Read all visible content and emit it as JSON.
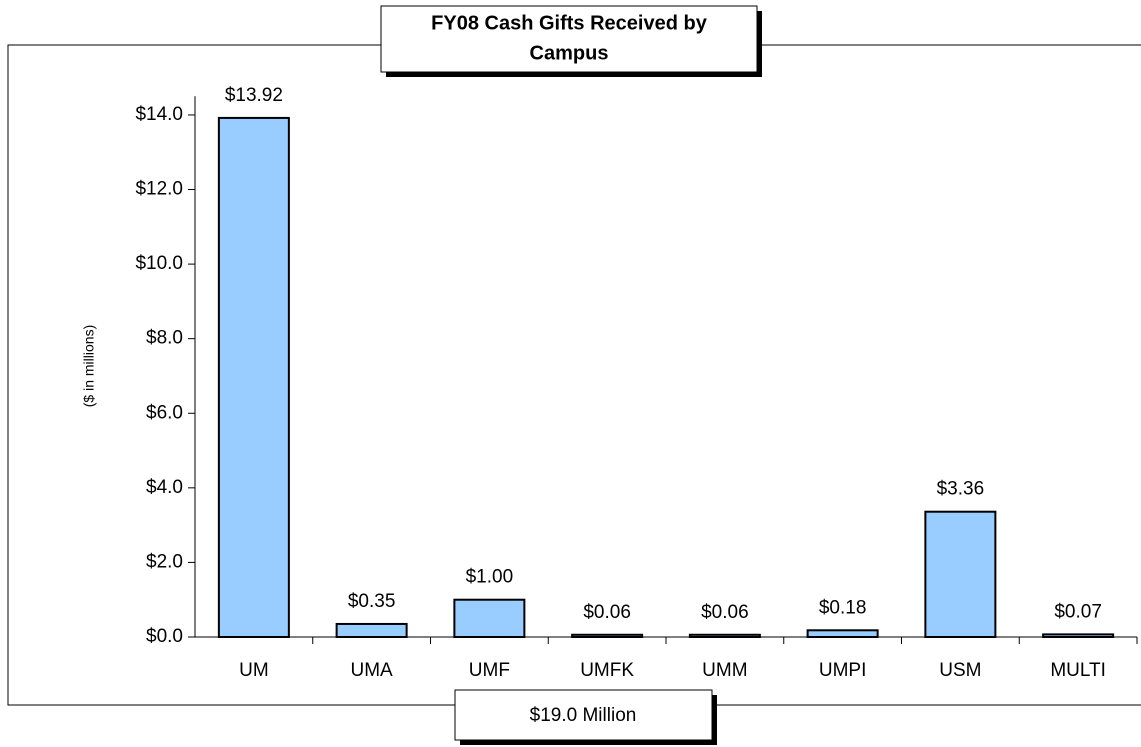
{
  "chart_data": {
    "type": "bar",
    "title": [
      "FY08 Cash Gifts Received by",
      "Campus"
    ],
    "y_label": "($ in millions)",
    "footer": "$19.0 Million",
    "categories": [
      "UM",
      "UMA",
      "UMF",
      "UMFK",
      "UMM",
      "UMPI",
      "USM",
      "MULTI"
    ],
    "values": [
      13.92,
      0.35,
      1.0,
      0.06,
      0.06,
      0.18,
      3.36,
      0.07
    ],
    "value_labels": [
      "$13.92",
      "$0.35",
      "$1.00",
      "$0.06",
      "$0.06",
      "$0.18",
      "$3.36",
      "$0.07"
    ],
    "color": "#99ccff",
    "ylim": [
      0,
      14.5
    ],
    "yticks": [
      {
        "value": 0,
        "label": "$0.0"
      },
      {
        "value": 2,
        "label": "$2.0"
      },
      {
        "value": 4,
        "label": "$4.0"
      },
      {
        "value": 6,
        "label": "$6.0"
      },
      {
        "value": 8,
        "label": "$8.0"
      },
      {
        "value": 10,
        "label": "$10.0"
      },
      {
        "value": 12,
        "label": "$12.0"
      },
      {
        "value": 14,
        "label": "$14.0"
      }
    ],
    "grid": false
  }
}
